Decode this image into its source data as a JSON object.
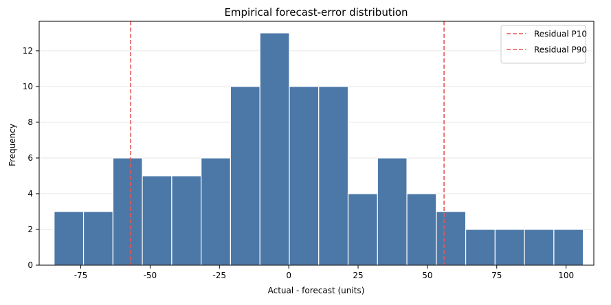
{
  "chart_data": {
    "type": "bar",
    "title": "Empirical forecast-error distribution",
    "xlabel": "Actual - forecast (units)",
    "ylabel": "Frequency",
    "xlim": [
      -90,
      110
    ],
    "ylim": [
      0,
      13.65
    ],
    "xticks": [
      -75,
      -50,
      -25,
      0,
      25,
      50,
      75,
      100
    ],
    "xtick_labels": [
      "-75",
      "-50",
      "-25",
      "0",
      "25",
      "50",
      "75",
      "100"
    ],
    "yticks": [
      0,
      2,
      4,
      6,
      8,
      10,
      12
    ],
    "ytick_labels": [
      "0",
      "2",
      "4",
      "6",
      "8",
      "10",
      "12"
    ],
    "grid": {
      "y": true,
      "x": false
    },
    "bins": [
      {
        "x0": -84.6,
        "x1": -74.0,
        "count": 3
      },
      {
        "x0": -74.0,
        "x1": -63.4,
        "count": 3
      },
      {
        "x0": -63.4,
        "x1": -52.8,
        "count": 6
      },
      {
        "x0": -52.8,
        "x1": -42.2,
        "count": 5
      },
      {
        "x0": -42.2,
        "x1": -31.6,
        "count": 5
      },
      {
        "x0": -31.6,
        "x1": -21.0,
        "count": 6
      },
      {
        "x0": -21.0,
        "x1": -10.4,
        "count": 10
      },
      {
        "x0": -10.4,
        "x1": 0.2,
        "count": 13
      },
      {
        "x0": 0.2,
        "x1": 10.8,
        "count": 10
      },
      {
        "x0": 10.8,
        "x1": 21.4,
        "count": 10
      },
      {
        "x0": 21.4,
        "x1": 32.0,
        "count": 4
      },
      {
        "x0": 32.0,
        "x1": 42.6,
        "count": 6
      },
      {
        "x0": 42.6,
        "x1": 53.2,
        "count": 4
      },
      {
        "x0": 53.2,
        "x1": 63.8,
        "count": 3
      },
      {
        "x0": 63.8,
        "x1": 74.4,
        "count": 2
      },
      {
        "x0": 74.4,
        "x1": 85.0,
        "count": 2
      },
      {
        "x0": 85.0,
        "x1": 95.6,
        "count": 2
      },
      {
        "x0": 95.6,
        "x1": 106.2,
        "count": 2
      }
    ],
    "vlines": [
      {
        "name": "Residual P10",
        "x": -57.0
      },
      {
        "name": "Residual P90",
        "x": 56.0
      }
    ],
    "legend": {
      "position": "top-right"
    },
    "colors": {
      "bar": "#4c78a8",
      "bar_edge": "#ffffff",
      "vline": "#e45756",
      "grid": "#e6e6e6"
    }
  }
}
